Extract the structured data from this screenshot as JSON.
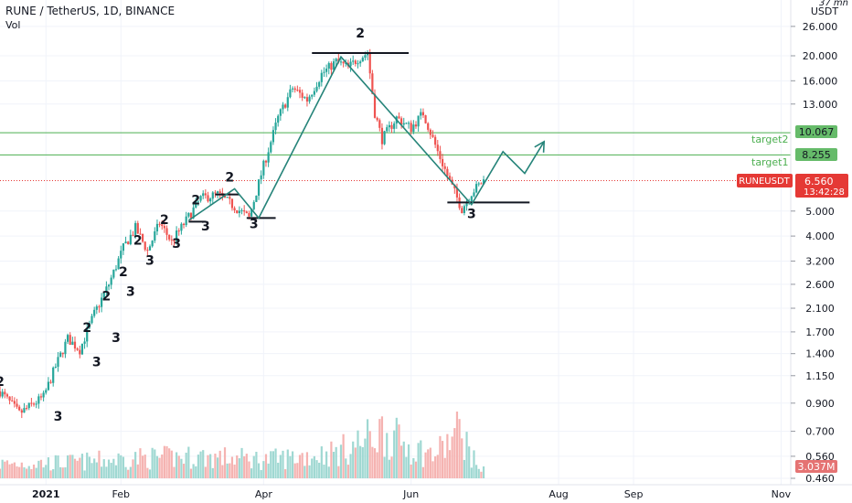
{
  "header": {
    "title": "RUNE / TetherUS, 1D, BINANCE",
    "indicator": "Vol"
  },
  "price_axis": {
    "unit": "USDT",
    "top_label": "37 mn",
    "ticks": [
      "26.000",
      "20.000",
      "16.000",
      "13.000",
      "8.255",
      "6.560",
      "5.000",
      "4.000",
      "3.200",
      "2.600",
      "2.100",
      "1.700",
      "1.400",
      "1.150",
      "0.900",
      "0.700",
      "0.560",
      "0.460"
    ],
    "ticks_numeric": [
      26,
      20,
      16,
      13,
      5,
      4,
      3.2,
      2.6,
      2.1,
      1.7,
      1.4,
      1.15,
      0.9,
      0.7,
      0.56,
      0.46
    ]
  },
  "time_axis": {
    "labels": [
      "2021",
      "Feb",
      "Apr",
      "Jun",
      "Aug",
      "Sep",
      "Nov"
    ]
  },
  "targets": [
    {
      "name": "target2",
      "price_label": "10.067",
      "price": 10.067
    },
    {
      "name": "target1",
      "price_label": "8.255",
      "price": 8.255
    }
  ],
  "current": {
    "symbol": "RUNEUSDT",
    "price_label": "6.560",
    "price": 6.56,
    "countdown": "13:42:28"
  },
  "volume_badge": "3.037M",
  "colors": {
    "up": "#26a69a",
    "down": "#ef5350",
    "vol_up": "#9fd8d2",
    "vol_down": "#f5b3b1",
    "target_line": "#4caf50",
    "target_badge": "#66bb6a",
    "current": "#e53935",
    "wave": "#26847a",
    "grid": "#f0f3fa",
    "text": "#131722"
  },
  "chart_data": {
    "type": "candlestick",
    "title": "RUNE / TetherUS, 1D, BINANCE",
    "yscale": "log",
    "ylim": [
      0.46,
      28
    ],
    "x_range": [
      "2020-12-13",
      "2021-11-05"
    ],
    "series": [
      {
        "name": "RUNE / TetherUS",
        "kind": "price-path",
        "x": [
          "2020-12-13",
          "2020-12-21",
          "2020-12-31",
          "2021-01-05",
          "2021-01-10",
          "2021-01-15",
          "2021-01-21",
          "2021-01-27",
          "2021-02-02",
          "2021-02-07",
          "2021-02-12",
          "2021-02-17",
          "2021-02-22",
          "2021-02-28",
          "2021-03-06",
          "2021-03-13",
          "2021-03-20",
          "2021-03-26",
          "2021-04-01",
          "2021-04-07",
          "2021-04-13",
          "2021-04-19",
          "2021-04-25",
          "2021-05-01",
          "2021-05-06",
          "2021-05-10",
          "2021-05-14",
          "2021-05-17",
          "2021-05-20",
          "2021-05-26",
          "2021-06-01",
          "2021-06-06",
          "2021-06-12",
          "2021-06-17",
          "2021-06-22",
          "2021-06-26",
          "2021-07-01"
        ],
        "values": [
          1.0,
          0.82,
          0.95,
          1.25,
          1.6,
          1.45,
          2.0,
          2.6,
          3.6,
          4.3,
          3.5,
          4.5,
          3.8,
          4.6,
          5.6,
          5.8,
          5.2,
          4.7,
          7.5,
          11.5,
          15.0,
          13.5,
          17.0,
          19.0,
          18.0,
          19.5,
          20.5,
          12.0,
          9.5,
          11.5,
          10.5,
          12.0,
          8.5,
          6.5,
          5.1,
          5.9,
          6.56
        ]
      },
      {
        "name": "Vol",
        "kind": "volume-envelope",
        "x": [
          "2020-12-13",
          "2021-01-10",
          "2021-02-07",
          "2021-03-06",
          "2021-04-03",
          "2021-05-01",
          "2021-05-20",
          "2021-06-10",
          "2021-06-22",
          "2021-07-01"
        ],
        "values": [
          1.0,
          1.1,
          1.4,
          1.5,
          1.3,
          1.8,
          3.3,
          1.6,
          3.6,
          0.55
        ]
      }
    ],
    "wave_labels": [
      {
        "text": "2",
        "date": "2020-12-13",
        "price": 1.05
      },
      {
        "text": "3",
        "date": "2021-01-06",
        "price": 0.77
      },
      {
        "text": "2",
        "date": "2021-01-18",
        "price": 1.7
      },
      {
        "text": "3",
        "date": "2021-01-22",
        "price": 1.25
      },
      {
        "text": "2",
        "date": "2021-01-26",
        "price": 2.25
      },
      {
        "text": "3",
        "date": "2021-01-30",
        "price": 1.55
      },
      {
        "text": "2",
        "date": "2021-02-02",
        "price": 2.8
      },
      {
        "text": "3",
        "date": "2021-02-05",
        "price": 2.35
      },
      {
        "text": "2",
        "date": "2021-02-08",
        "price": 3.7
      },
      {
        "text": "3",
        "date": "2021-02-13",
        "price": 3.1
      },
      {
        "text": "2",
        "date": "2021-02-19",
        "price": 4.45
      },
      {
        "text": "3",
        "date": "2021-02-24",
        "price": 3.6
      },
      {
        "text": "2",
        "date": "2021-03-04",
        "price": 5.3
      },
      {
        "text": "3",
        "date": "2021-03-08",
        "price": 4.2
      },
      {
        "text": "2",
        "date": "2021-03-18",
        "price": 6.5
      },
      {
        "text": "3",
        "date": "2021-03-28",
        "price": 4.3
      },
      {
        "text": "2",
        "date": "2021-05-11",
        "price": 23.5
      },
      {
        "text": "3",
        "date": "2021-06-26",
        "price": 4.7
      }
    ],
    "levels": [
      {
        "from": "2021-03-12",
        "to": "2021-03-22",
        "price": 5.8
      },
      {
        "from": "2021-03-01",
        "to": "2021-03-08",
        "price": 4.55
      },
      {
        "from": "2021-03-25",
        "to": "2021-04-06",
        "price": 4.7
      },
      {
        "from": "2021-04-21",
        "to": "2021-05-31",
        "price": 20.5
      },
      {
        "from": "2021-06-16",
        "to": "2021-07-20",
        "price": 5.4
      }
    ],
    "wave_path": [
      {
        "date": "2021-03-01",
        "price": 4.6
      },
      {
        "date": "2021-03-20",
        "price": 6.1
      },
      {
        "date": "2021-03-30",
        "price": 4.7
      },
      {
        "date": "2021-05-03",
        "price": 19.8
      },
      {
        "date": "2021-06-26",
        "price": 5.3
      },
      {
        "date": "2021-07-09",
        "price": 8.5
      },
      {
        "date": "2021-07-18",
        "price": 7.0
      },
      {
        "date": "2021-07-26",
        "price": 9.3
      }
    ]
  }
}
